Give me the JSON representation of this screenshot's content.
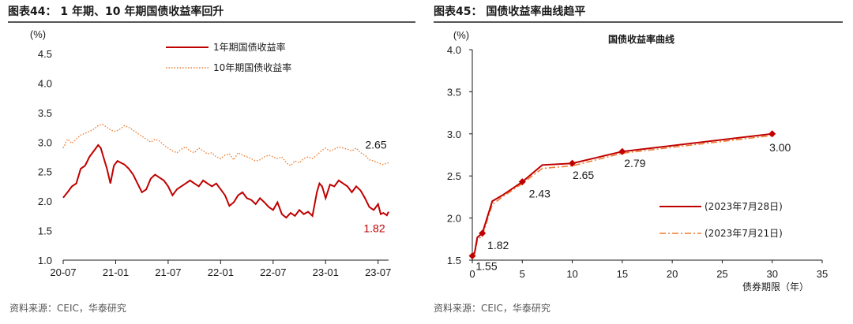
{
  "left": {
    "title": "图表44： 1 年期、10 年期国债收益率回升",
    "source": "资料来源：CEIC，华泰研究",
    "colors": {
      "one_year": "#c00000",
      "ten_year": "#ed7d31",
      "header_rule": "#1f1f1f"
    },
    "chart_data": {
      "type": "line",
      "ylabel": "(%)",
      "ylim": [
        1.0,
        4.5
      ],
      "yticks": [
        "1.0",
        "1.5",
        "2.0",
        "2.5",
        "3.0",
        "3.5",
        "4.0",
        "4.5"
      ],
      "xlim": [
        0,
        37.2
      ],
      "xticks": [
        {
          "pos": 0,
          "label": "20-07"
        },
        {
          "pos": 6,
          "label": "21-01"
        },
        {
          "pos": 12,
          "label": "21-07"
        },
        {
          "pos": 18,
          "label": "22-01"
        },
        {
          "pos": 24,
          "label": "22-07"
        },
        {
          "pos": 30,
          "label": "23-01"
        },
        {
          "pos": 36,
          "label": "23-07"
        }
      ],
      "series": [
        {
          "name": "1年期国债收益率",
          "style": "solid",
          "end_label": "1.82",
          "x": [
            0,
            0.5,
            1,
            1.5,
            2,
            2.5,
            3,
            3.5,
            4,
            4.3,
            4.6,
            5,
            5.4,
            5.8,
            6.2,
            6.6,
            7,
            7.5,
            8,
            8.5,
            9,
            9.5,
            10,
            10.5,
            11,
            11.5,
            12,
            12.5,
            13,
            13.5,
            14,
            14.5,
            15,
            15.5,
            16,
            16.5,
            17,
            17.5,
            18,
            18.5,
            19,
            19.5,
            20,
            20.5,
            21,
            21.5,
            22,
            22.5,
            23,
            23.5,
            24,
            24.5,
            25,
            25.5,
            26,
            26.5,
            27,
            27.5,
            28,
            28.5,
            29,
            29.3,
            29.6,
            30,
            30.5,
            31,
            31.5,
            32,
            32.5,
            33,
            33.5,
            34,
            34.5,
            35,
            35.5,
            36,
            36.3,
            36.6,
            37,
            37.2
          ],
          "values": [
            2.06,
            2.15,
            2.25,
            2.3,
            2.55,
            2.6,
            2.75,
            2.85,
            2.95,
            2.9,
            2.75,
            2.55,
            2.3,
            2.6,
            2.68,
            2.65,
            2.62,
            2.55,
            2.45,
            2.3,
            2.15,
            2.2,
            2.38,
            2.45,
            2.4,
            2.35,
            2.25,
            2.1,
            2.2,
            2.25,
            2.3,
            2.35,
            2.3,
            2.25,
            2.35,
            2.3,
            2.25,
            2.3,
            2.2,
            2.1,
            1.92,
            1.98,
            2.1,
            2.15,
            2.05,
            2.02,
            1.95,
            2.05,
            1.98,
            1.9,
            1.85,
            1.98,
            1.78,
            1.72,
            1.8,
            1.75,
            1.85,
            1.78,
            1.82,
            1.75,
            2.15,
            2.3,
            2.25,
            2.05,
            2.28,
            2.25,
            2.35,
            2.3,
            2.25,
            2.15,
            2.25,
            2.18,
            2.05,
            1.9,
            1.85,
            1.95,
            1.78,
            1.8,
            1.76,
            1.82
          ]
        },
        {
          "name": "10年期国债收益率",
          "style": "dotted",
          "end_label": "2.65",
          "x": [
            0,
            0.5,
            1,
            1.5,
            2,
            2.5,
            3,
            3.5,
            4,
            4.5,
            5,
            5.5,
            6,
            6.5,
            7,
            7.5,
            8,
            8.5,
            9,
            9.5,
            10,
            10.5,
            11,
            11.5,
            12,
            12.5,
            13,
            13.5,
            14,
            14.5,
            15,
            15.5,
            16,
            16.5,
            17,
            17.5,
            18,
            18.5,
            19,
            19.5,
            20,
            20.5,
            21,
            21.5,
            22,
            22.5,
            23,
            23.5,
            24,
            24.5,
            25,
            25.5,
            26,
            26.5,
            27,
            27.5,
            28,
            28.5,
            29,
            29.5,
            30,
            30.5,
            31,
            31.5,
            32,
            32.5,
            33,
            33.5,
            34,
            34.5,
            35,
            35.5,
            36,
            36.5,
            37,
            37.2
          ],
          "values": [
            2.9,
            3.05,
            2.98,
            3.05,
            3.12,
            3.15,
            3.18,
            3.22,
            3.28,
            3.3,
            3.25,
            3.2,
            3.18,
            3.22,
            3.28,
            3.25,
            3.2,
            3.15,
            3.1,
            3.05,
            3.0,
            3.05,
            3.02,
            2.95,
            2.9,
            2.85,
            2.82,
            2.88,
            2.92,
            2.85,
            2.82,
            2.9,
            2.85,
            2.8,
            2.82,
            2.75,
            2.72,
            2.78,
            2.8,
            2.7,
            2.82,
            2.78,
            2.75,
            2.72,
            2.68,
            2.7,
            2.75,
            2.78,
            2.75,
            2.72,
            2.75,
            2.65,
            2.6,
            2.68,
            2.65,
            2.72,
            2.75,
            2.72,
            2.78,
            2.85,
            2.9,
            2.85,
            2.88,
            2.92,
            2.9,
            2.88,
            2.85,
            2.9,
            2.82,
            2.78,
            2.7,
            2.68,
            2.65,
            2.62,
            2.64,
            2.65
          ]
        }
      ]
    }
  },
  "right": {
    "title": "图表45： 国债收益率曲线趋平",
    "source": "资料来源：CEIC，华泰研究",
    "colors": {
      "jul28": "#c00000",
      "jul21": "#ed7d31",
      "marker": "#c00000"
    },
    "chart_data": {
      "type": "line",
      "title": "国债收益率曲线",
      "ylabel": "(%)",
      "xlabel": "债券期限（年）",
      "ylim": [
        1.5,
        4.0
      ],
      "yticks": [
        "1.5",
        "2.0",
        "2.5",
        "3.0",
        "3.5",
        "4.0"
      ],
      "xlim": [
        0,
        35
      ],
      "xticks": [
        "0",
        "5",
        "10",
        "15",
        "20",
        "25",
        "30",
        "35"
      ],
      "series": [
        {
          "name": "(2023年7月28日)",
          "style": "solid",
          "x": [
            0,
            0.25,
            0.5,
            1,
            2,
            3,
            5,
            7,
            10,
            15,
            30
          ],
          "values": [
            1.55,
            1.6,
            1.77,
            1.82,
            2.2,
            2.27,
            2.43,
            2.63,
            2.65,
            2.79,
            3.0
          ]
        },
        {
          "name": "(2023年7月21日)",
          "style": "dashdot",
          "x": [
            0,
            0.25,
            0.5,
            1,
            2,
            3,
            5,
            7,
            10,
            15,
            30
          ],
          "values": [
            1.53,
            1.58,
            1.74,
            1.79,
            2.16,
            2.25,
            2.41,
            2.59,
            2.62,
            2.77,
            2.98
          ]
        }
      ],
      "markers": [
        {
          "x": 0,
          "value": 1.55,
          "label": "1.55"
        },
        {
          "x": 1,
          "value": 1.82,
          "label": "1.82"
        },
        {
          "x": 5,
          "value": 2.43,
          "label": "2.43"
        },
        {
          "x": 10,
          "value": 2.65,
          "label": "2.65"
        },
        {
          "x": 15,
          "value": 2.79,
          "label": "2.79"
        },
        {
          "x": 30,
          "value": 3.0,
          "label": "3.00"
        }
      ]
    }
  }
}
